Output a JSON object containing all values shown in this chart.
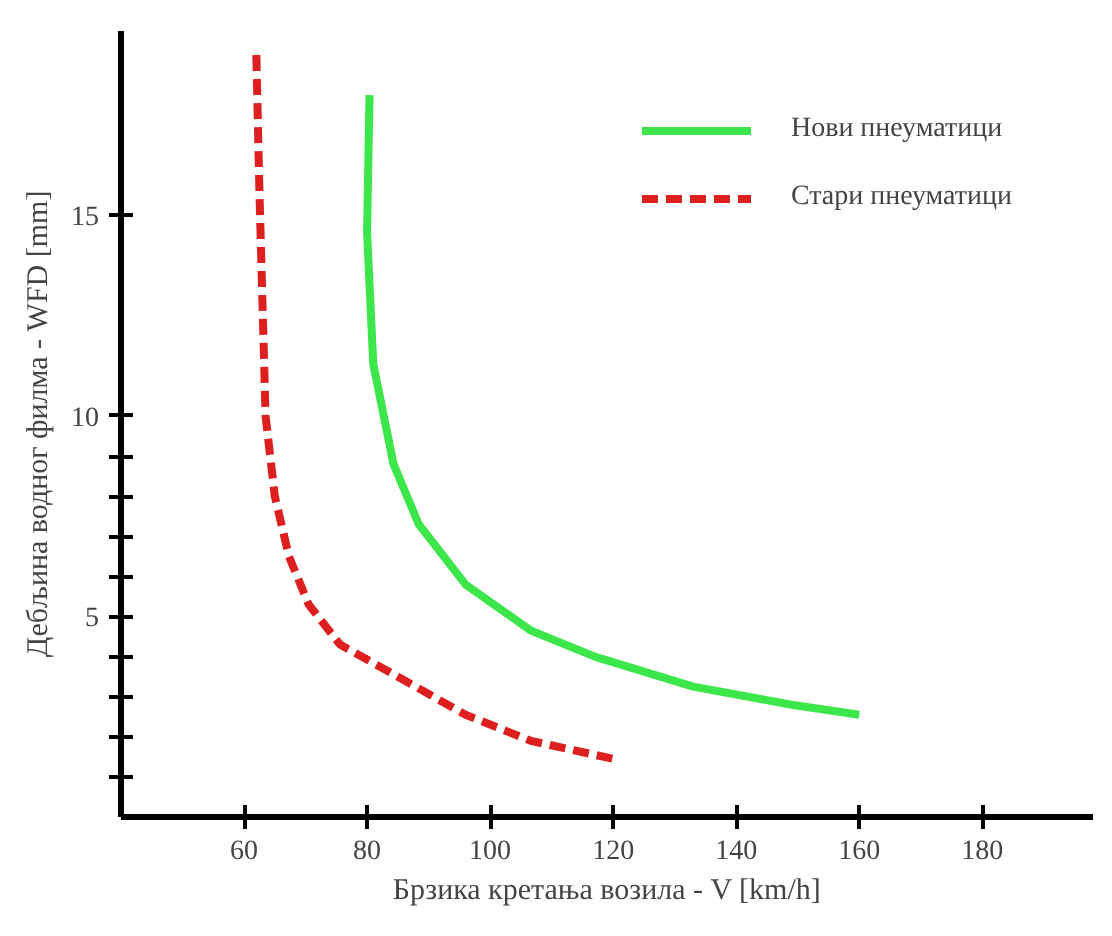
{
  "chart_data": {
    "type": "line",
    "xlabel": "Брзика кретања возила - V [km/h]",
    "ylabel": "Дебљина водног филма - WFD [mm]",
    "xlim": [
      40,
      198
    ],
    "ylim": [
      0,
      19.6
    ],
    "xticks": [
      60,
      80,
      100,
      120,
      140,
      160,
      180
    ],
    "yticks": [
      {
        "value": 1,
        "label": null
      },
      {
        "value": 2,
        "label": null
      },
      {
        "value": 3,
        "label": null
      },
      {
        "value": 4,
        "label": null
      },
      5,
      {
        "value": 6,
        "label": null
      },
      {
        "value": 7,
        "label": null
      },
      {
        "value": 8,
        "label": null
      },
      {
        "value": 9,
        "label": null
      },
      10,
      15
    ],
    "grid": false,
    "legend": "top right",
    "series": [
      {
        "name": "Нови пнеуматици",
        "color": "#3de64a",
        "line_style": "solid",
        "x": [
          80.4,
          80,
          81,
          84.3,
          88.4,
          96,
          106.6,
          117,
          133,
          149,
          160
        ],
        "values": [
          18,
          14.6,
          11.3,
          8.8,
          7.3,
          5.8,
          4.65,
          4.0,
          3.25,
          2.8,
          2.55
        ]
      },
      {
        "name": "Стари пнеуматици",
        "color": "#dd1f1f",
        "line_style": "dashed",
        "x": [
          62,
          62.5,
          63.5,
          65,
          67.3,
          70.5,
          75.6,
          85,
          96,
          106.6,
          120
        ],
        "values": [
          19,
          15.6,
          10,
          8,
          6.5,
          5.3,
          4.3,
          3.5,
          2.55,
          1.9,
          1.45
        ]
      }
    ]
  }
}
